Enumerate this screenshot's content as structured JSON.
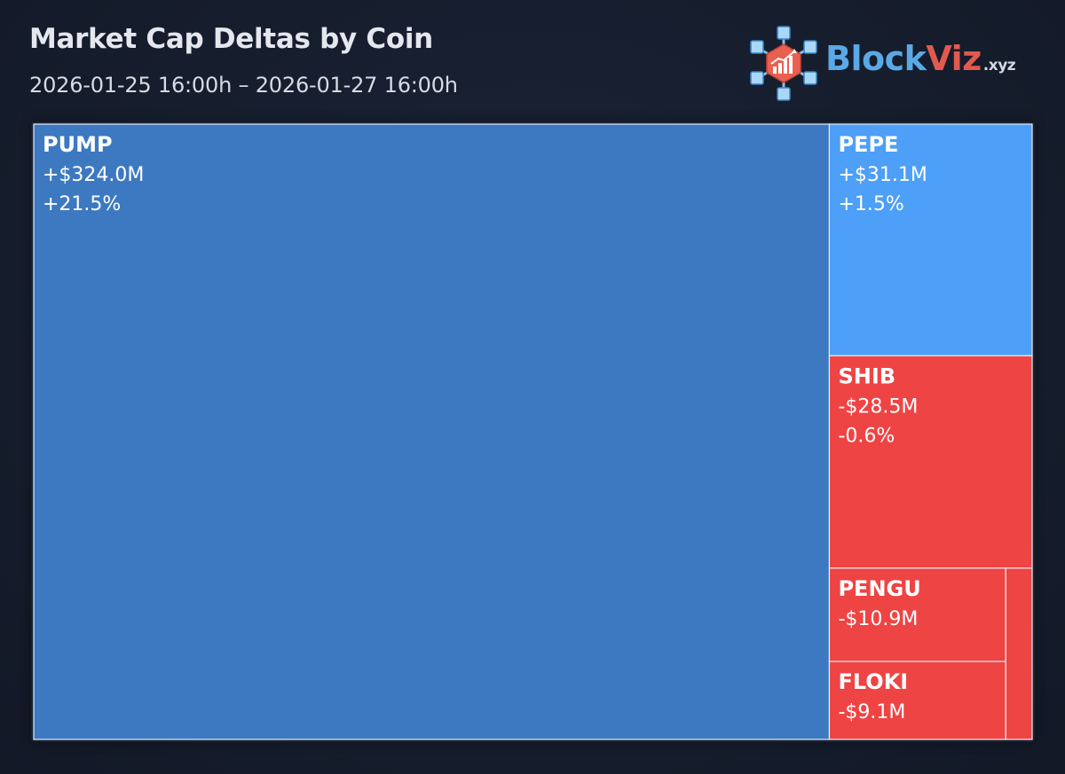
{
  "header": {
    "title": "Market Cap Deltas by Coin",
    "subtitle": "2026-01-25 16:00h – 2026-01-27 16:00h"
  },
  "logo": {
    "name_part1": "Block",
    "name_part2": "Viz",
    "tld": ".xyz",
    "icon": "cube-network-chart-icon"
  },
  "colors": {
    "positive_large": "#3d79c1",
    "positive_small": "#4d9ff7",
    "negative": "#ef4444",
    "border": "#e8eef6"
  },
  "chart_data": {
    "type": "treemap",
    "title": "Market Cap Deltas by Coin",
    "items": [
      {
        "name": "PUMP",
        "delta_label": "+$324.0M",
        "pct_label": "+21.5%",
        "delta_musd": 324.0,
        "pct": 21.5,
        "color": "#3d79c1"
      },
      {
        "name": "PEPE",
        "delta_label": "+$31.1M",
        "pct_label": "+1.5%",
        "delta_musd": 31.1,
        "pct": 1.5,
        "color": "#4d9ff7"
      },
      {
        "name": "SHIB",
        "delta_label": "-$28.5M",
        "pct_label": "-0.6%",
        "delta_musd": -28.5,
        "pct": -0.6,
        "color": "#ef4444"
      },
      {
        "name": "PENGU",
        "delta_label": "-$10.9M",
        "delta_musd": -10.9,
        "color": "#ef4444"
      },
      {
        "name": "FLOKI",
        "delta_label": "-$9.1M",
        "delta_musd": -9.1,
        "color": "#ef4444"
      },
      {
        "name": "",
        "delta_musd": -3.0,
        "color": "#ef4444"
      }
    ]
  }
}
